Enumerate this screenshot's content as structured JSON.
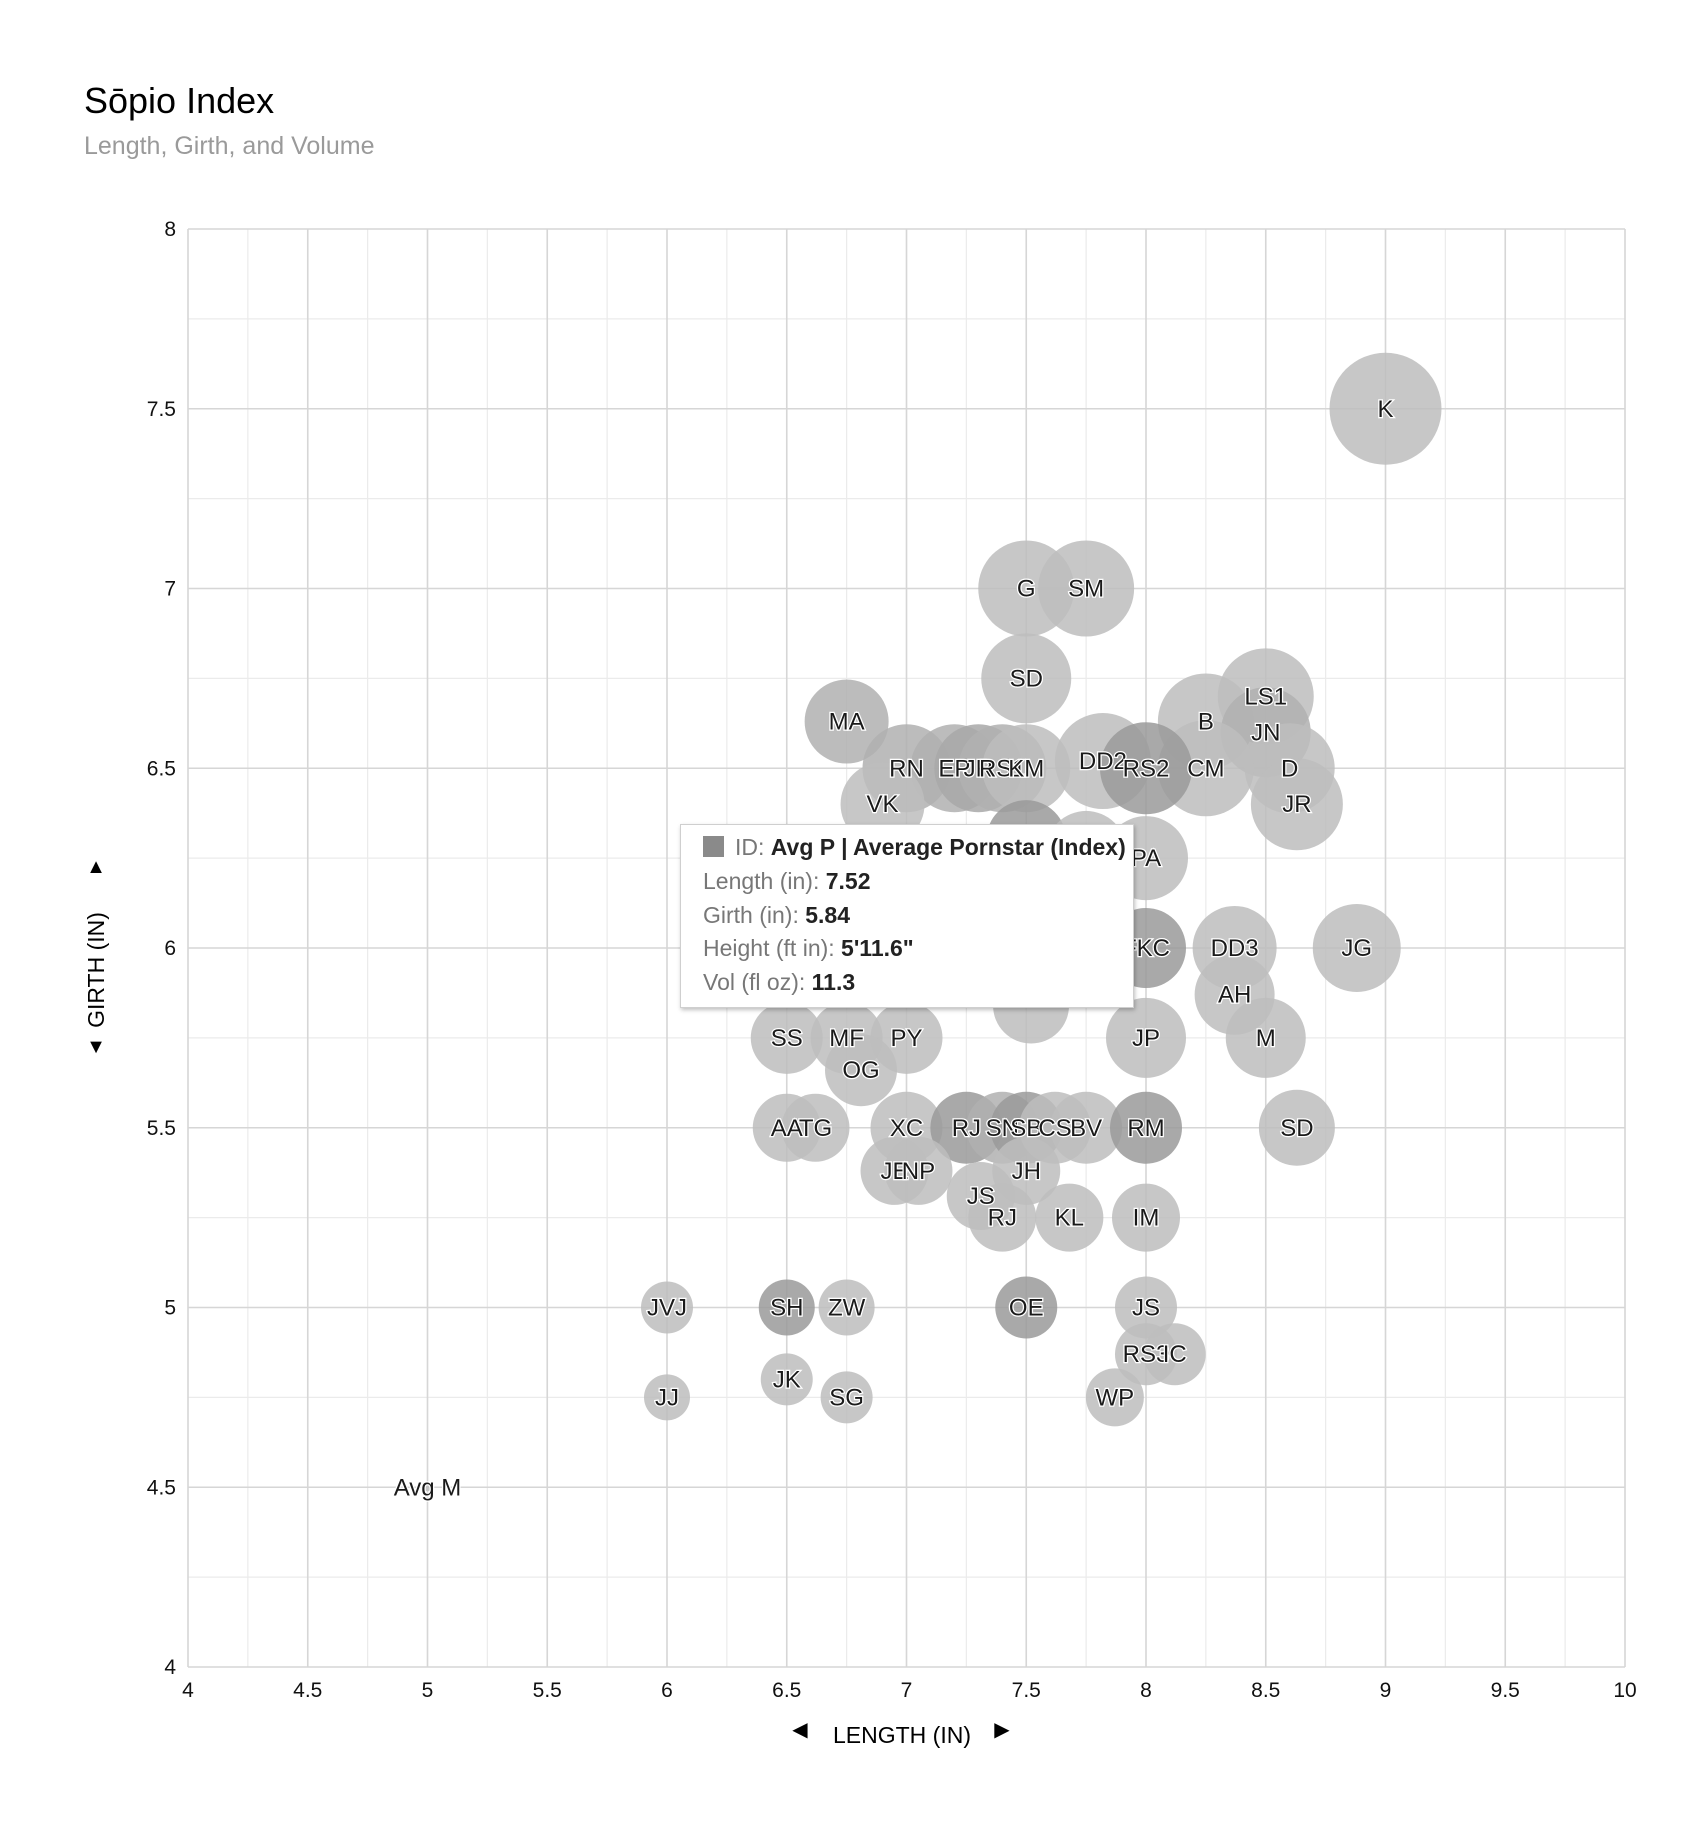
{
  "chart_data": {
    "type": "scatter",
    "title": "Sōpio Index",
    "subtitle": "Length, Girth, and Volume",
    "xlabel": "LENGTH (IN)",
    "ylabel": "GIRTH (IN)",
    "xlim": [
      4,
      10
    ],
    "ylim": [
      4,
      8
    ],
    "x_ticks": [
      "4",
      "4.5",
      "5",
      "5.5",
      "6",
      "6.5",
      "7",
      "7.5",
      "8",
      "8.5",
      "9",
      "9.5",
      "10"
    ],
    "y_ticks": [
      "4",
      "4.5",
      "5",
      "5.5",
      "6",
      "6.5",
      "7",
      "7.5",
      "8"
    ],
    "gridlines": true,
    "points": [
      {
        "id": "K",
        "x": 9.0,
        "y": 7.5,
        "r": 56,
        "shade": "#bdbdbd"
      },
      {
        "id": "G",
        "x": 7.5,
        "y": 7.0,
        "r": 48,
        "shade": "#bdbdbd"
      },
      {
        "id": "SM",
        "x": 7.75,
        "y": 7.0,
        "r": 48,
        "shade": "#bdbdbd"
      },
      {
        "id": "SD",
        "x": 7.5,
        "y": 6.75,
        "r": 45,
        "shade": "#bdbdbd"
      },
      {
        "id": "MA",
        "x": 6.75,
        "y": 6.63,
        "r": 42,
        "shade": "#b0b0b0"
      },
      {
        "id": "LS1",
        "x": 8.5,
        "y": 6.7,
        "r": 48,
        "shade": "#bdbdbd"
      },
      {
        "id": "B",
        "x": 8.25,
        "y": 6.63,
        "r": 48,
        "shade": "#bdbdbd"
      },
      {
        "id": "JN",
        "x": 8.5,
        "y": 6.6,
        "r": 45,
        "shade": "#b0b0b0"
      },
      {
        "id": "D",
        "x": 8.6,
        "y": 6.5,
        "r": 45,
        "shade": "#bdbdbd"
      },
      {
        "id": "JR",
        "x": 8.63,
        "y": 6.4,
        "r": 46,
        "shade": "#bdbdbd"
      },
      {
        "id": "CM",
        "x": 8.25,
        "y": 6.5,
        "r": 48,
        "shade": "#bdbdbd"
      },
      {
        "id": "RN",
        "x": 7.0,
        "y": 6.5,
        "r": 44,
        "shade": "#b0b0b0"
      },
      {
        "id": "EP",
        "x": 7.2,
        "y": 6.5,
        "r": 44,
        "shade": "#b0b0b0"
      },
      {
        "id": "JR",
        "x": 7.3,
        "y": 6.5,
        "r": 44,
        "shade": "#a8a8a8"
      },
      {
        "id": "RS1",
        "x": 7.4,
        "y": 6.5,
        "r": 44,
        "shade": "#b0b0b0"
      },
      {
        "id": "KM",
        "x": 7.5,
        "y": 6.5,
        "r": 44,
        "shade": "#bdbdbd"
      },
      {
        "id": "VK",
        "x": 6.9,
        "y": 6.4,
        "r": 42,
        "shade": "#bdbdbd"
      },
      {
        "id": "DD2",
        "x": 7.82,
        "y": 6.52,
        "r": 48,
        "shade": "#bdbdbd"
      },
      {
        "id": "RS2",
        "x": 8.0,
        "y": 6.5,
        "r": 46,
        "shade": "#9a9a9a"
      },
      {
        "id": "PA",
        "x": 8.0,
        "y": 6.25,
        "r": 42,
        "shade": "#bdbdbd"
      },
      {
        "id": "FKC",
        "x": 8.0,
        "y": 6.0,
        "r": 40,
        "shade": "#9a9a9a"
      },
      {
        "id": "DD3",
        "x": 8.37,
        "y": 6.0,
        "r": 42,
        "shade": "#bdbdbd"
      },
      {
        "id": "AH",
        "x": 8.37,
        "y": 5.87,
        "r": 40,
        "shade": "#bdbdbd"
      },
      {
        "id": "JG",
        "x": 8.88,
        "y": 6.0,
        "r": 44,
        "shade": "#bdbdbd"
      },
      {
        "id": "M",
        "x": 8.5,
        "y": 5.75,
        "r": 40,
        "shade": "#bdbdbd"
      },
      {
        "id": "JP",
        "x": 8.0,
        "y": 5.75,
        "r": 40,
        "shade": "#bdbdbd"
      },
      {
        "id": "SS",
        "x": 6.5,
        "y": 5.75,
        "r": 36,
        "shade": "#bdbdbd"
      },
      {
        "id": "MF",
        "x": 6.75,
        "y": 5.75,
        "r": 36,
        "shade": "#bdbdbd"
      },
      {
        "id": "PY",
        "x": 7.0,
        "y": 5.75,
        "r": 36,
        "shade": "#bdbdbd"
      },
      {
        "id": "OG",
        "x": 6.81,
        "y": 5.66,
        "r": 36,
        "shade": "#bdbdbd"
      },
      {
        "id": "AA",
        "x": 6.5,
        "y": 5.5,
        "r": 34,
        "shade": "#bdbdbd"
      },
      {
        "id": "TG",
        "x": 6.62,
        "y": 5.5,
        "r": 34,
        "shade": "#bdbdbd"
      },
      {
        "id": "XC",
        "x": 7.0,
        "y": 5.5,
        "r": 36,
        "shade": "#bdbdbd"
      },
      {
        "id": "RJ",
        "x": 7.25,
        "y": 5.5,
        "r": 36,
        "shade": "#9a9a9a"
      },
      {
        "id": "SN",
        "x": 7.4,
        "y": 5.5,
        "r": 36,
        "shade": "#b0b0b0"
      },
      {
        "id": "SB",
        "x": 7.5,
        "y": 5.5,
        "r": 36,
        "shade": "#9a9a9a"
      },
      {
        "id": "CS",
        "x": 7.62,
        "y": 5.5,
        "r": 36,
        "shade": "#bdbdbd"
      },
      {
        "id": "BV",
        "x": 7.75,
        "y": 5.5,
        "r": 36,
        "shade": "#bdbdbd"
      },
      {
        "id": "RM",
        "x": 8.0,
        "y": 5.5,
        "r": 36,
        "shade": "#9a9a9a"
      },
      {
        "id": "SD",
        "x": 8.63,
        "y": 5.5,
        "r": 38,
        "shade": "#bdbdbd"
      },
      {
        "id": "JE",
        "x": 6.95,
        "y": 5.38,
        "r": 34,
        "shade": "#bdbdbd"
      },
      {
        "id": "NP",
        "x": 7.05,
        "y": 5.38,
        "r": 34,
        "shade": "#bdbdbd"
      },
      {
        "id": "JH",
        "x": 7.5,
        "y": 5.38,
        "r": 34,
        "shade": "#bdbdbd"
      },
      {
        "id": "JS",
        "x": 7.31,
        "y": 5.31,
        "r": 34,
        "shade": "#bdbdbd"
      },
      {
        "id": "RJ",
        "x": 7.4,
        "y": 5.25,
        "r": 34,
        "shade": "#bdbdbd"
      },
      {
        "id": "KL",
        "x": 7.68,
        "y": 5.25,
        "r": 34,
        "shade": "#bdbdbd"
      },
      {
        "id": "IM",
        "x": 8.0,
        "y": 5.25,
        "r": 34,
        "shade": "#bdbdbd"
      },
      {
        "id": "JVJ",
        "x": 6.0,
        "y": 5.0,
        "r": 26,
        "shade": "#bdbdbd"
      },
      {
        "id": "SH",
        "x": 6.5,
        "y": 5.0,
        "r": 28,
        "shade": "#9a9a9a"
      },
      {
        "id": "ZW",
        "x": 6.75,
        "y": 5.0,
        "r": 28,
        "shade": "#bdbdbd"
      },
      {
        "id": "OE",
        "x": 7.5,
        "y": 5.0,
        "r": 31,
        "shade": "#9a9a9a"
      },
      {
        "id": "JS",
        "x": 8.0,
        "y": 5.0,
        "r": 31,
        "shade": "#bdbdbd"
      },
      {
        "id": "RS3",
        "x": 8.0,
        "y": 4.87,
        "r": 31,
        "shade": "#bdbdbd"
      },
      {
        "id": "IC",
        "x": 8.12,
        "y": 4.87,
        "r": 31,
        "shade": "#bdbdbd"
      },
      {
        "id": "JK",
        "x": 6.5,
        "y": 4.8,
        "r": 26,
        "shade": "#bdbdbd"
      },
      {
        "id": "JJ",
        "x": 6.0,
        "y": 4.75,
        "r": 23,
        "shade": "#bdbdbd"
      },
      {
        "id": "SG",
        "x": 6.75,
        "y": 4.75,
        "r": 26,
        "shade": "#bdbdbd"
      },
      {
        "id": "WP",
        "x": 7.87,
        "y": 4.75,
        "r": 29,
        "shade": "#bdbdbd"
      },
      {
        "id": "Avg M",
        "x": 5.0,
        "y": 4.5,
        "r": 4,
        "shade": "#bdbdbd"
      }
    ],
    "hidden_points": [
      {
        "id": "Avg P",
        "x": 7.52,
        "y": 5.84,
        "r": 38,
        "shade": "#bdbdbd"
      },
      {
        "id": "",
        "x": 7.5,
        "y": 6.3,
        "r": 40,
        "shade": "#9a9a9a"
      },
      {
        "id": "",
        "x": 7.75,
        "y": 6.27,
        "r": 40,
        "shade": "#bdbdbd"
      }
    ],
    "tooltip": {
      "id_label": "ID",
      "id_value": "Avg P | Average Pornstar (Index)",
      "length_label": "Length (in)",
      "length_value": "7.52",
      "girth_label": "Girth (in)",
      "girth_value": "5.84",
      "height_label": "Height (ft in)",
      "height_value": "5'11.6\"",
      "vol_label": "Vol (fl oz)",
      "vol_value": "11.3"
    }
  }
}
